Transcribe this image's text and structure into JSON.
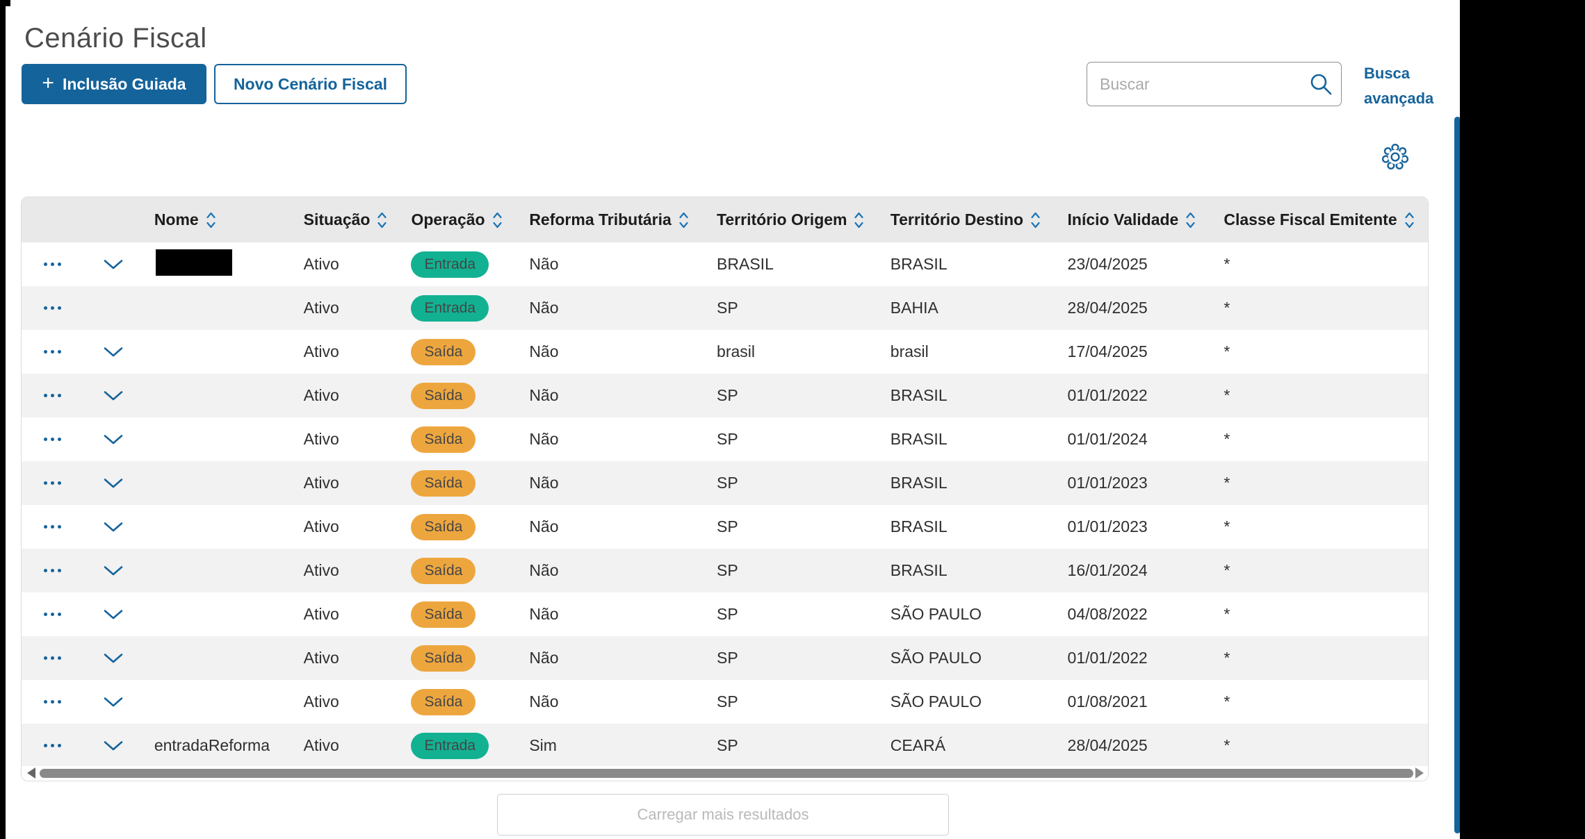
{
  "title": "Cenário Fiscal",
  "toolbar": {
    "guided_button": {
      "plus": "+",
      "label": "Inclusão Guiada"
    },
    "new_button": {
      "label": "Novo Cenário Fiscal"
    },
    "search": {
      "placeholder": "Buscar",
      "value": ""
    },
    "advanced_search": {
      "line1": "Busca",
      "line2": "avançada"
    }
  },
  "icons": {
    "search": "search-icon",
    "settings": "gear-icon",
    "sort": "sort-icon",
    "row_menu": "more-options-icon",
    "row_expand": "chevron-down-icon"
  },
  "table": {
    "columns": [
      {
        "key": "name",
        "label": "Nome"
      },
      {
        "key": "status",
        "label": "Situação"
      },
      {
        "key": "operation",
        "label": "Operação"
      },
      {
        "key": "tax_reform",
        "label": "Reforma Tributária"
      },
      {
        "key": "territory_origin",
        "label": "Território Origem"
      },
      {
        "key": "territory_destination",
        "label": "Território Destino"
      },
      {
        "key": "validity_start",
        "label": "Início Validade"
      },
      {
        "key": "issuer_fiscal_class",
        "label": "Classe Fiscal Emitente"
      }
    ],
    "rows": [
      {
        "expandable": true,
        "name": "",
        "name_redacted": true,
        "status": "Ativo",
        "operation": "Entrada",
        "operation_color": "green",
        "tax_reform": "Não",
        "territory_origin": "BRASIL",
        "territory_destination": "BRASIL",
        "validity_start": "23/04/2025",
        "issuer_fiscal_class": "*"
      },
      {
        "expandable": false,
        "name": "",
        "name_redacted": false,
        "status": "Ativo",
        "operation": "Entrada",
        "operation_color": "green",
        "tax_reform": "Não",
        "territory_origin": "SP",
        "territory_destination": "BAHIA",
        "validity_start": "28/04/2025",
        "issuer_fiscal_class": "*"
      },
      {
        "expandable": true,
        "name": "",
        "name_redacted": false,
        "status": "Ativo",
        "operation": "Saída",
        "operation_color": "orange",
        "tax_reform": "Não",
        "territory_origin": "brasil",
        "territory_destination": "brasil",
        "validity_start": "17/04/2025",
        "issuer_fiscal_class": "*"
      },
      {
        "expandable": true,
        "name": "",
        "name_redacted": false,
        "status": "Ativo",
        "operation": "Saída",
        "operation_color": "orange",
        "tax_reform": "Não",
        "territory_origin": "SP",
        "territory_destination": "BRASIL",
        "validity_start": "01/01/2022",
        "issuer_fiscal_class": "*"
      },
      {
        "expandable": true,
        "name": "",
        "name_redacted": false,
        "status": "Ativo",
        "operation": "Saída",
        "operation_color": "orange",
        "tax_reform": "Não",
        "territory_origin": "SP",
        "territory_destination": "BRASIL",
        "validity_start": "01/01/2024",
        "issuer_fiscal_class": "*"
      },
      {
        "expandable": true,
        "name": "",
        "name_redacted": false,
        "status": "Ativo",
        "operation": "Saída",
        "operation_color": "orange",
        "tax_reform": "Não",
        "territory_origin": "SP",
        "territory_destination": "BRASIL",
        "validity_start": "01/01/2023",
        "issuer_fiscal_class": "*"
      },
      {
        "expandable": true,
        "name": "",
        "name_redacted": false,
        "status": "Ativo",
        "operation": "Saída",
        "operation_color": "orange",
        "tax_reform": "Não",
        "territory_origin": "SP",
        "territory_destination": "BRASIL",
        "validity_start": "01/01/2023",
        "issuer_fiscal_class": "*"
      },
      {
        "expandable": true,
        "name": "",
        "name_redacted": false,
        "status": "Ativo",
        "operation": "Saída",
        "operation_color": "orange",
        "tax_reform": "Não",
        "territory_origin": "SP",
        "territory_destination": "BRASIL",
        "validity_start": "16/01/2024",
        "issuer_fiscal_class": "*"
      },
      {
        "expandable": true,
        "name": "",
        "name_redacted": false,
        "status": "Ativo",
        "operation": "Saída",
        "operation_color": "orange",
        "tax_reform": "Não",
        "territory_origin": "SP",
        "territory_destination": "SÃO PAULO",
        "validity_start": "04/08/2022",
        "issuer_fiscal_class": "*"
      },
      {
        "expandable": true,
        "name": "",
        "name_redacted": false,
        "status": "Ativo",
        "operation": "Saída",
        "operation_color": "orange",
        "tax_reform": "Não",
        "territory_origin": "SP",
        "territory_destination": "SÃO PAULO",
        "validity_start": "01/01/2022",
        "issuer_fiscal_class": "*"
      },
      {
        "expandable": true,
        "name": "",
        "name_redacted": false,
        "status": "Ativo",
        "operation": "Saída",
        "operation_color": "orange",
        "tax_reform": "Não",
        "territory_origin": "SP",
        "territory_destination": "SÃO PAULO",
        "validity_start": "01/08/2021",
        "issuer_fiscal_class": "*"
      },
      {
        "expandable": true,
        "name": "entradaReforma",
        "name_redacted": false,
        "status": "Ativo",
        "operation": "Entrada",
        "operation_color": "green",
        "tax_reform": "Sim",
        "territory_origin": "SP",
        "territory_destination": "CEARÁ",
        "validity_start": "28/04/2025",
        "issuer_fiscal_class": "*"
      }
    ],
    "load_more": "Carregar mais resultados"
  },
  "colors": {
    "primary": "#15639b",
    "badge_green": "#12b192",
    "badge_orange": "#eda63e",
    "header_bg": "#e9e9e9",
    "zebra_bg": "#f2f2f2"
  }
}
